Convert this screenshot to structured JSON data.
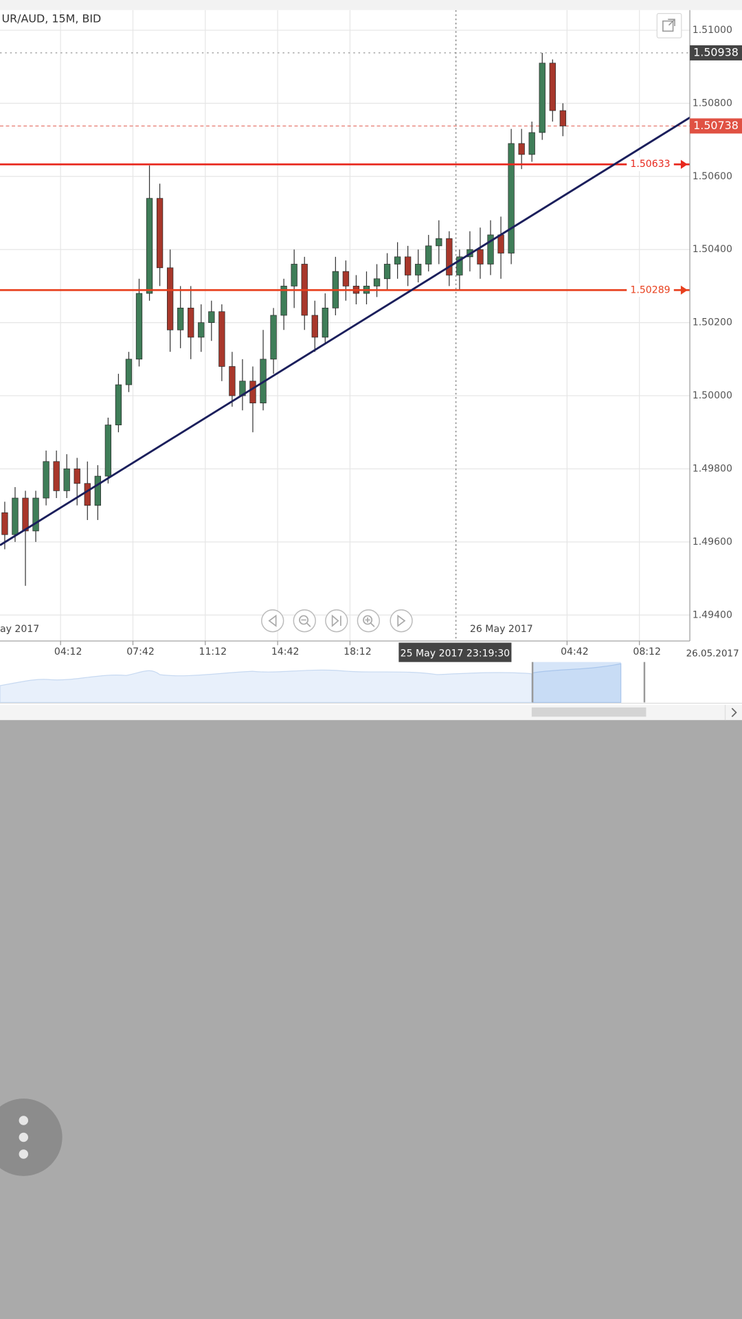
{
  "chart_data": {
    "type": "candlestick",
    "title": "UR/AUD, 15M, BID",
    "up_color": "#3f7d58",
    "down_color": "#a8372b",
    "xlim": [
      1.27,
      34.64
    ],
    "ylim": [
      1.49329,
      1.51055
    ],
    "yticks": [
      {
        "value": 1.494,
        "label": "1.49400"
      },
      {
        "value": 1.496,
        "label": "1.49600"
      },
      {
        "value": 1.498,
        "label": "1.49800"
      },
      {
        "value": 1.5,
        "label": "1.50000"
      },
      {
        "value": 1.502,
        "label": "1.50200"
      },
      {
        "value": 1.504,
        "label": "1.50400"
      },
      {
        "value": 1.506,
        "label": "1.50600"
      },
      {
        "value": 1.508,
        "label": "1.50800"
      },
      {
        "value": 1.51,
        "label": "1.51000"
      }
    ],
    "xticks": [
      {
        "value": 4.2,
        "label": "04:12"
      },
      {
        "value": 7.7,
        "label": "07:42"
      },
      {
        "value": 11.2,
        "label": "11:12"
      },
      {
        "value": 14.7,
        "label": "14:42"
      },
      {
        "value": 18.2,
        "label": "18:12"
      },
      {
        "value": 28.7,
        "label": "04:42"
      },
      {
        "value": 32.2,
        "label": "08:12"
      }
    ],
    "grid": true,
    "x": [
      1.5,
      2,
      2.5,
      3,
      3.5,
      4,
      4.5,
      5,
      5.5,
      6,
      6.5,
      7,
      7.5,
      8,
      8.5,
      9,
      9.5,
      10,
      10.5,
      11,
      11.5,
      12,
      12.5,
      13,
      13.5,
      14,
      14.5,
      15,
      15.5,
      16,
      16.5,
      17,
      17.5,
      18,
      18.5,
      19,
      19.5,
      20,
      20.5,
      21,
      21.5,
      22,
      22.5,
      23,
      23.5,
      24,
      24.5,
      25,
      25.5,
      26,
      26.5,
      27,
      27.5,
      28,
      28.5
    ],
    "open": [
      1.4968,
      1.4962,
      1.4972,
      1.4963,
      1.4972,
      1.4982,
      1.4974,
      1.498,
      1.4976,
      1.497,
      1.4978,
      1.4992,
      1.5003,
      1.501,
      1.5028,
      1.5054,
      1.5035,
      1.5018,
      1.5024,
      1.5016,
      1.502,
      1.5023,
      1.5008,
      1.5,
      1.5004,
      1.4998,
      1.501,
      1.5022,
      1.503,
      1.5036,
      1.5022,
      1.5016,
      1.5024,
      1.5034,
      1.503,
      1.5028,
      1.503,
      1.5032,
      1.5036,
      1.5038,
      1.5033,
      1.5036,
      1.5041,
      1.5043,
      1.5033,
      1.5038,
      1.504,
      1.5036,
      1.5044,
      1.5039,
      1.5069,
      1.5066,
      1.5072,
      1.5091,
      1.5078
    ],
    "high": [
      1.4971,
      1.4975,
      1.4974,
      1.4974,
      1.4985,
      1.4985,
      1.4984,
      1.4983,
      1.4982,
      1.4981,
      1.4994,
      1.5006,
      1.5012,
      1.5032,
      1.5063,
      1.5058,
      1.504,
      1.503,
      1.503,
      1.5025,
      1.5026,
      1.5025,
      1.5012,
      1.501,
      1.5008,
      1.5018,
      1.5024,
      1.5032,
      1.504,
      1.5038,
      1.5026,
      1.5028,
      1.5038,
      1.5037,
      1.5033,
      1.5034,
      1.5036,
      1.5039,
      1.5042,
      1.5041,
      1.504,
      1.5044,
      1.5048,
      1.5045,
      1.504,
      1.5045,
      1.5046,
      1.5048,
      1.5049,
      1.5073,
      1.5073,
      1.5075,
      1.50938,
      1.5092,
      1.508
    ],
    "low": [
      1.4958,
      1.496,
      1.4948,
      1.496,
      1.497,
      1.4972,
      1.4972,
      1.497,
      1.4966,
      1.4966,
      1.4976,
      1.499,
      1.5001,
      1.5008,
      1.5026,
      1.503,
      1.5012,
      1.5013,
      1.501,
      1.5012,
      1.5015,
      1.5004,
      1.4997,
      1.4996,
      1.499,
      1.4996,
      1.5006,
      1.5018,
      1.5024,
      1.5018,
      1.5012,
      1.5014,
      1.5022,
      1.5026,
      1.5025,
      1.5025,
      1.5027,
      1.5029,
      1.5032,
      1.503,
      1.5031,
      1.5034,
      1.5036,
      1.503,
      1.5029,
      1.5034,
      1.5032,
      1.5033,
      1.5032,
      1.5036,
      1.5062,
      1.5064,
      1.507,
      1.5075,
      1.5071
    ],
    "close": [
      1.4962,
      1.4972,
      1.4963,
      1.4972,
      1.4982,
      1.4974,
      1.498,
      1.4976,
      1.497,
      1.4978,
      1.4992,
      1.5003,
      1.501,
      1.5028,
      1.5054,
      1.5035,
      1.5018,
      1.5024,
      1.5016,
      1.502,
      1.5023,
      1.5008,
      1.5,
      1.5004,
      1.4998,
      1.501,
      1.5022,
      1.503,
      1.5036,
      1.5022,
      1.5016,
      1.5024,
      1.5034,
      1.503,
      1.5028,
      1.503,
      1.5032,
      1.5036,
      1.5038,
      1.5033,
      1.5036,
      1.5041,
      1.5043,
      1.5033,
      1.5038,
      1.504,
      1.5036,
      1.5044,
      1.5039,
      1.5069,
      1.5066,
      1.5072,
      1.5091,
      1.5078,
      1.50738
    ],
    "hlines": [
      1.50633,
      1.50289
    ],
    "hline_colors": [
      "#e8281e",
      "#e8401e"
    ],
    "trendline": {
      "x": [
        1.27,
        34.64
      ],
      "y": [
        1.49591,
        1.50761
      ],
      "color": "#1b1f5c"
    },
    "last_price": 1.50738,
    "high_price": 1.50938,
    "crosshair": {
      "value": 23.325,
      "label": "25 May 2017 23:19:30"
    },
    "date_labels": [
      {
        "value": 0,
        "label": "ay 2017"
      },
      {
        "value": 24,
        "label": "26 May 2017"
      }
    ],
    "date_stamp": "26.05.2017"
  }
}
